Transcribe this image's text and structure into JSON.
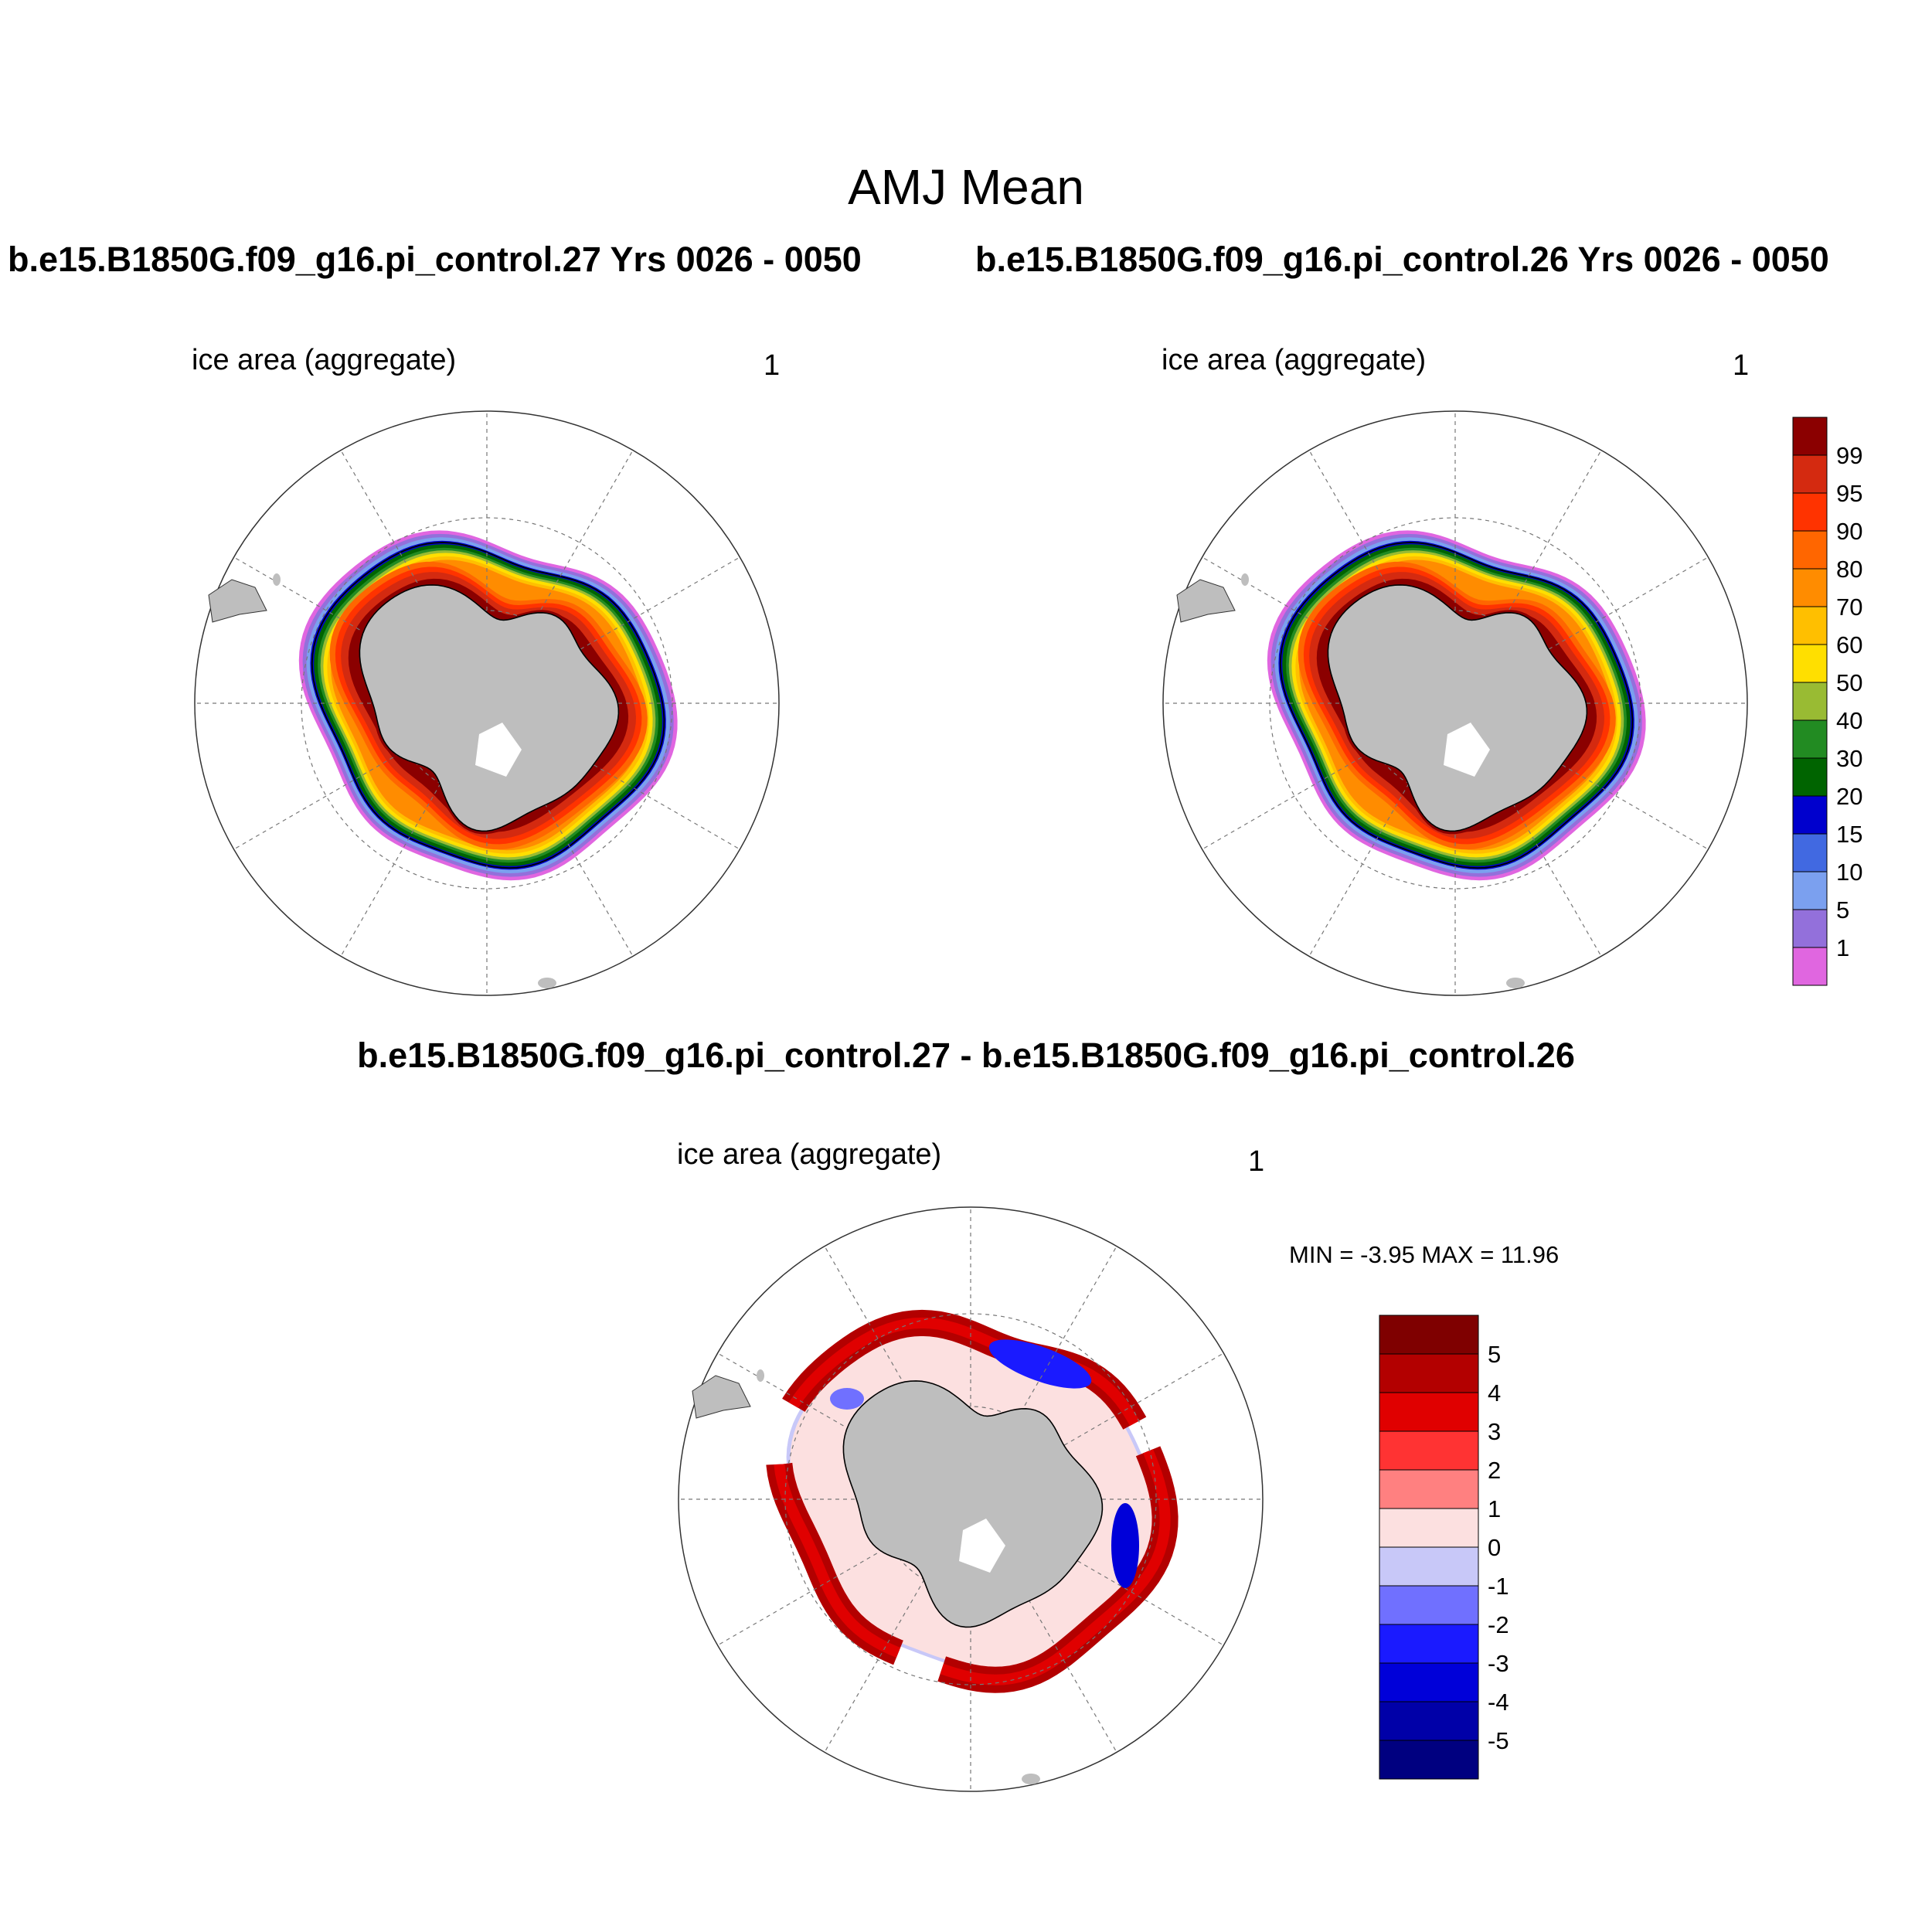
{
  "figure": {
    "title": "AMJ Mean"
  },
  "panels": [
    {
      "title": "b.e15.B1850G.f09_g16.pi_control.27  Yrs 0026 - 0050",
      "variable": "ice area  (aggregate)",
      "units": "1"
    },
    {
      "title": "b.e15.B1850G.f09_g16.pi_control.26  Yrs 0026 - 0050",
      "variable": "ice area  (aggregate)",
      "units": "1"
    },
    {
      "title": "b.e15.B1850G.f09_g16.pi_control.27 - b.e15.B1850G.f09_g16.pi_control.26",
      "variable": "ice area  (aggregate)",
      "units": "1",
      "min_max": "MIN =  -3.95 MAX =  11.96"
    }
  ],
  "colorbar_ice": {
    "labels": [
      "99",
      "95",
      "90",
      "80",
      "70",
      "60",
      "50",
      "40",
      "30",
      "20",
      "15",
      "10",
      "5",
      "1"
    ],
    "colors": [
      "#8b0000",
      "#d42a10",
      "#ff3300",
      "#ff6600",
      "#ff8c00",
      "#ffbf00",
      "#ffdf00",
      "#99bb33",
      "#228b22",
      "#006400",
      "#0000cd",
      "#4169e1",
      "#7ba0ef",
      "#9370db",
      "#e066e0"
    ]
  },
  "colorbar_diff": {
    "labels": [
      "5",
      "4",
      "3",
      "2",
      "1",
      "0",
      "-1",
      "-2",
      "-3",
      "-4",
      "-5"
    ],
    "colors": [
      "#7f0000",
      "#b30000",
      "#e00000",
      "#ff3333",
      "#ff8080",
      "#fce0e0",
      "#c8c8f8",
      "#7070ff",
      "#1a1aff",
      "#0000d9",
      "#0000a8",
      "#000080"
    ]
  },
  "chart_data": [
    {
      "type": "heatmap",
      "title": "b.e15.B1850G.f09_g16.pi_control.27  Yrs 0026 - 0050",
      "variable": "ice area  (aggregate)",
      "units": "1",
      "projection": "south polar stereographic",
      "levels": [
        1,
        5,
        10,
        15,
        20,
        30,
        40,
        50,
        60,
        70,
        80,
        90,
        95,
        99
      ]
    },
    {
      "type": "heatmap",
      "title": "b.e15.B1850G.f09_g16.pi_control.26  Yrs 0026 - 0050",
      "variable": "ice area  (aggregate)",
      "units": "1",
      "projection": "south polar stereographic",
      "levels": [
        1,
        5,
        10,
        15,
        20,
        30,
        40,
        50,
        60,
        70,
        80,
        90,
        95,
        99
      ]
    },
    {
      "type": "heatmap",
      "title": "b.e15.B1850G.f09_g16.pi_control.27 - b.e15.B1850G.f09_g16.pi_control.26",
      "variable": "ice area  (aggregate)",
      "units": "1",
      "projection": "south polar stereographic",
      "levels": [
        -5,
        -4,
        -3,
        -2,
        -1,
        0,
        1,
        2,
        3,
        4,
        5
      ],
      "min": -3.95,
      "max": 11.96
    }
  ]
}
